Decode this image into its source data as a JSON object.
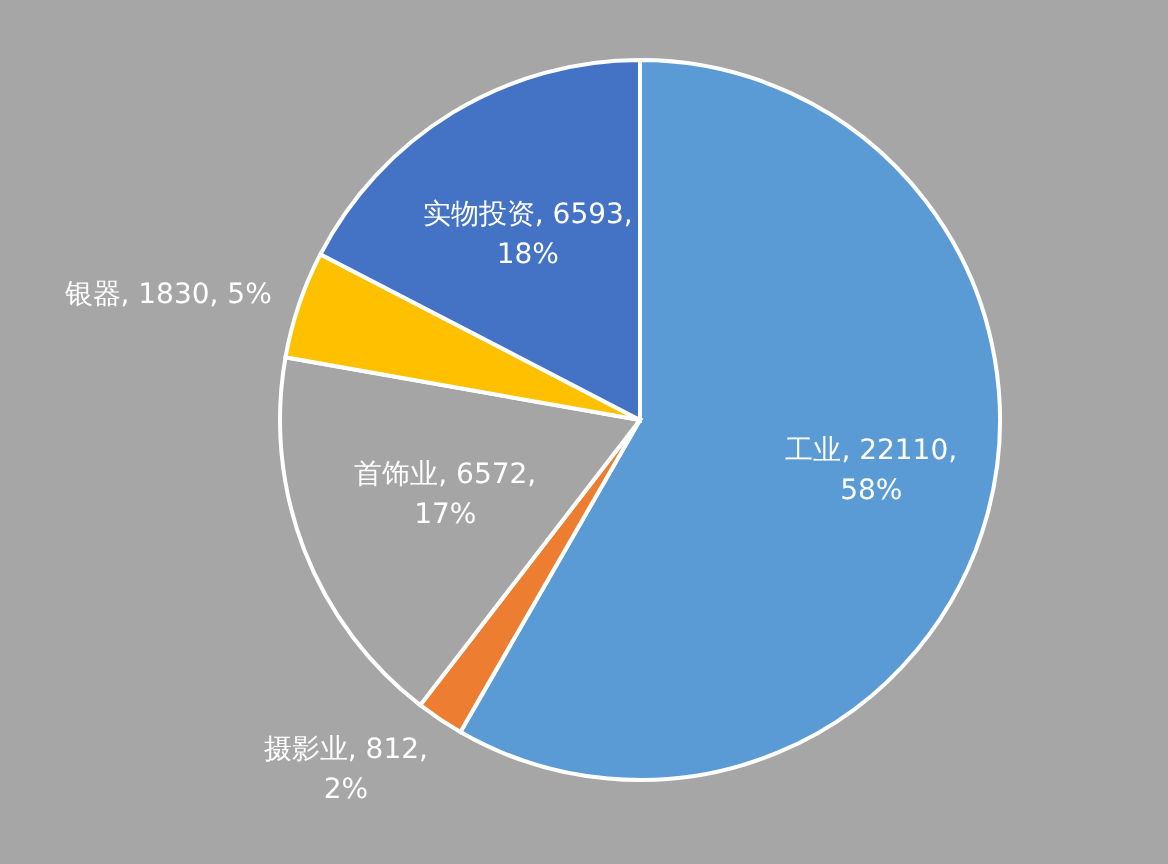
{
  "chart_data": {
    "type": "pie",
    "categories": [
      "工业",
      "摄影业",
      "首饰业",
      "银器",
      "实物投资"
    ],
    "values": [
      22110,
      812,
      6572,
      1830,
      6593
    ],
    "value_labels": [
      "22110, 58%",
      "812, 2%",
      "6572, 17%",
      "1830, 5%",
      "6593, 18%"
    ],
    "colors": [
      "#5b9bd5",
      "#ed7d31",
      "#a5a5a5",
      "#ffc000",
      "#4472c4"
    ]
  }
}
